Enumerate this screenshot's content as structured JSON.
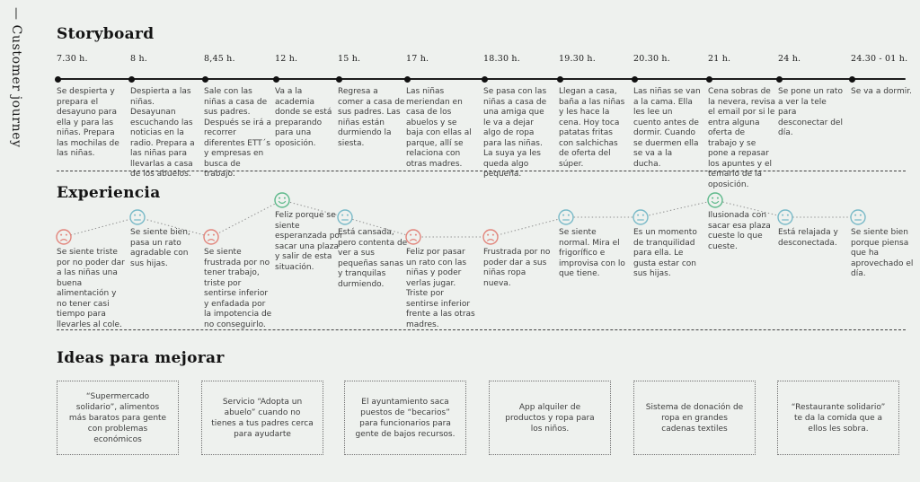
{
  "page": {
    "vertical_label": "— Customer journey",
    "background": "#eef1ee"
  },
  "storyboard": {
    "title": "Storyboard",
    "steps": [
      {
        "time": "7.30 h.",
        "text": "Se despierta y prepara el desayuno para ella y para las niñas. Prepara las mochilas de las niñas."
      },
      {
        "time": "8 h.",
        "text": "Despierta a las niñas. Desayunan escuchando las noticias en la radio. Prepara a las niñas para llevarlas a casa de los abuelos."
      },
      {
        "time": "8,45 h.",
        "text": "Sale con las niñas a casa de sus padres. Después se irá a recorrer diferentes ETT´s y empresas en busca de trabajo."
      },
      {
        "time": "12 h.",
        "text": "Va a la academia donde se está preparando para una oposición."
      },
      {
        "time": "15 h.",
        "text": "Regresa a comer a casa de sus padres. Las niñas están durmiendo la siesta."
      },
      {
        "time": "17 h.",
        "text": "Las niñas meriendan en casa de los abuelos y se baja con ellas al parque, allí se relaciona con otras madres."
      },
      {
        "time": "18.30 h.",
        "text": "Se pasa con las niñas a casa de una amiga que le va a dejar algo de ropa para las niñas. La suya ya les queda algo pequeña."
      },
      {
        "time": "19.30 h.",
        "text": "Llegan a casa, baña a las niñas y les hace la cena. Hoy toca patatas fritas con salchichas de oferta del súper."
      },
      {
        "time": "20.30 h.",
        "text": "Las niñas se van a la cama. Ella les lee un cuento antes de dormir. Cuando se duermen ella se va a la ducha."
      },
      {
        "time": "21 h.",
        "text": "Cena sobras de la nevera, revisa el email por si le entra alguna oferta de trabajo y se pone a repasar los apuntes y el temario de la oposición."
      },
      {
        "time": "24 h.",
        "text": "Se pone un rato a ver la tele para desconectar del día."
      },
      {
        "time": "24.30 - 01 h.",
        "text": "Se va a dormir."
      }
    ]
  },
  "experience": {
    "title": "Experiencia",
    "moods": {
      "sad": "#e2857c",
      "neutral": "#79bac8",
      "happy": "#5eb98b"
    },
    "points": [
      {
        "mood": "sad",
        "level": "low",
        "text": "Se siente triste por no poder dar a las niñas una buena alimentación y no tener casi tiempo para llevarles al cole."
      },
      {
        "mood": "neutral",
        "level": "mid",
        "text": "Se siente bien, pasa un rato agradable con sus hijas."
      },
      {
        "mood": "sad",
        "level": "low",
        "text": "Se siente frustrada por no tener trabajo, triste por sentirse inferior y enfadada por la impotencia de no conseguirlo."
      },
      {
        "mood": "happy",
        "level": "high",
        "text": "Feliz porque se siente esperanzada por sacar una plaza y salir de esta situación."
      },
      {
        "mood": "neutral",
        "level": "mid",
        "text": "Está cansada, pero contenta de ver a sus pequeñas sanas y tranquilas durmiendo."
      },
      {
        "mood": "sad",
        "level": "low",
        "text": "Feliz por pasar un rato con las niñas y poder verlas jugar. Triste por sentirse inferior frente a las otras madres."
      },
      {
        "mood": "sad",
        "level": "low",
        "text": "Frustrada por no poder dar a sus niñas ropa nueva."
      },
      {
        "mood": "neutral",
        "level": "mid",
        "text": "Se siente normal. Mira el frigorífico e improvisa con lo que tiene."
      },
      {
        "mood": "neutral",
        "level": "mid",
        "text": "Es un momento de tranquilidad para ella. Le gusta estar con sus hijas."
      },
      {
        "mood": "happy",
        "level": "high",
        "text": "Ilusionada con sacar esa plaza cueste lo que cueste."
      },
      {
        "mood": "neutral",
        "level": "mid",
        "text": "Está relajada y desconectada."
      },
      {
        "mood": "neutral",
        "level": "mid",
        "text": "Se siente bien porque piensa que ha aprovechado el día."
      }
    ]
  },
  "ideas": {
    "title": "Ideas para mejorar",
    "items": [
      "“Supermercado solidario”, alimentos más baratos para gente con problemas económicos",
      "Servicio “Adopta un abuelo” cuando no tienes a tus padres cerca para ayudarte",
      "El ayuntamiento saca puestos de “becarios” para funcionarios para gente de bajos recursos.",
      "App alquiler de productos y ropa para los niños.",
      "Sistema de donación de ropa en grandes cadenas textiles",
      "“Restaurante solidario” te da la comida que a ellos les sobra."
    ]
  }
}
